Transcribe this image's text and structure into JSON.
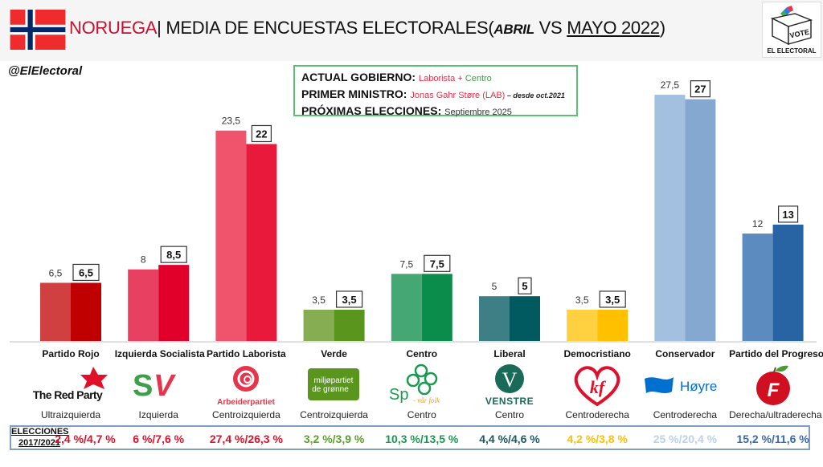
{
  "header": {
    "country": "NORUEGA",
    "separator": "|",
    "title_main": "MEDIA DE ENCUESTAS ELECTORALES",
    "title_open": "(",
    "title_abril": "ABRIL",
    "title_vs": "VS",
    "title_mayo": "MAYO 2022",
    "title_close": ")",
    "handle": "@ElElectoral",
    "logo_vote": "VOTE",
    "logo_name": "EL ELECTORAL"
  },
  "infobox": {
    "gov_label": "ACTUAL GOBIERNO:",
    "gov_part1": "Laborista",
    "gov_plus": " + ",
    "gov_part2": "Centro",
    "pm_label": "PRIMER MINISTRO:",
    "pm_name": "Jonas Gahr Støre (LAB)",
    "pm_since": " – desde oct.2021",
    "next_label": "PRÓXIMAS ELECCIONES:",
    "next_value": "Septiembre 2025"
  },
  "chart_data": {
    "type": "bar",
    "title": "NORUEGA | MEDIA DE ENCUESTAS ELECTORALES (ABRIL VS MAYO 2022)",
    "xlabel": "",
    "ylabel": "",
    "ylim": [
      0,
      30
    ],
    "grid": false,
    "categories": [
      "Partido Rojo",
      "Izquierda Socialista",
      "Partido Laborista",
      "Verde",
      "Centro",
      "Liberal",
      "Democristiano",
      "Conservador",
      "Partido del Progreso"
    ],
    "series": [
      {
        "name": "Abril 2022",
        "values": [
          6.5,
          8,
          23.5,
          3.5,
          7.5,
          5,
          3.5,
          27.5,
          12
        ],
        "labels": [
          "6,5",
          "8",
          "23,5",
          "3,5",
          "7,5",
          "5",
          "3,5",
          "27,5",
          "12"
        ]
      },
      {
        "name": "Mayo 2022",
        "values": [
          6.5,
          8.5,
          22,
          3.5,
          7.5,
          5,
          3.5,
          27,
          13
        ],
        "labels": [
          "6,5",
          "8,5",
          "22",
          "3,5",
          "7,5",
          "5",
          "3,5",
          "27",
          "13"
        ]
      }
    ],
    "colors_abril": [
      "#d04040",
      "#e84060",
      "#f0546c",
      "#86ad52",
      "#45a874",
      "#3d7f84",
      "#ffd040",
      "#a4c0e0",
      "#5c8cbf"
    ],
    "colors_mayo": [
      "#c00000",
      "#e0002a",
      "#e8193a",
      "#5a961e",
      "#0a8c4a",
      "#005a5f",
      "#ffc000",
      "#84a8d0",
      "#2864a4"
    ]
  },
  "parties": [
    {
      "name": "Partido Rojo",
      "ideology": "Ultraizquierda",
      "logo_text": "The Red Party",
      "elections": "2,4 %/4,7 %",
      "election_color": "#e0102a"
    },
    {
      "name": "Izquierda Socialista",
      "ideology": "Izquierda",
      "logo_text": "SV",
      "elections": "6 %/7,6 %",
      "election_color": "#e0102a"
    },
    {
      "name": "Partido Laborista",
      "ideology": "Centroizquierda",
      "logo_text": "Arbeiderpartiet",
      "elections": "27,4 %/26,3 %",
      "election_color": "#e0102a"
    },
    {
      "name": "Verde",
      "ideology": "Centroizquierda",
      "logo_text": "miljøpartiet de grønne",
      "elections": "3,2 %/3,9 %",
      "election_color": "#5aa02a"
    },
    {
      "name": "Centro",
      "ideology": "Centro",
      "logo_text": "Sp",
      "logo_sub": "- vår folk",
      "elections": "10,3 %/13,5 %",
      "election_color": "#1a9a50"
    },
    {
      "name": "Liberal",
      "ideology": "Centro",
      "logo_text": "VENSTRE",
      "elections": "4,4 %/4,6 %",
      "election_color": "#1a5a60"
    },
    {
      "name": "Democristiano",
      "ideology": "Centroderecha",
      "logo_text": "KrF",
      "elections": "4,2 %/3,8 %",
      "election_color": "#ffc000"
    },
    {
      "name": "Conservador",
      "ideology": "Centroderecha",
      "logo_text": "Høyre",
      "elections": "25 %/20,4 %",
      "election_color": "#bcd2ea"
    },
    {
      "name": "Partido del Progreso",
      "ideology": "Derecha/ultraderecha",
      "logo_text": "F",
      "elections": "15,2 %/11,6 %",
      "election_color": "#3a6aa8"
    }
  ],
  "elections_label_line1": "ELECCIONES",
  "elections_label_line2": "2017/2021"
}
